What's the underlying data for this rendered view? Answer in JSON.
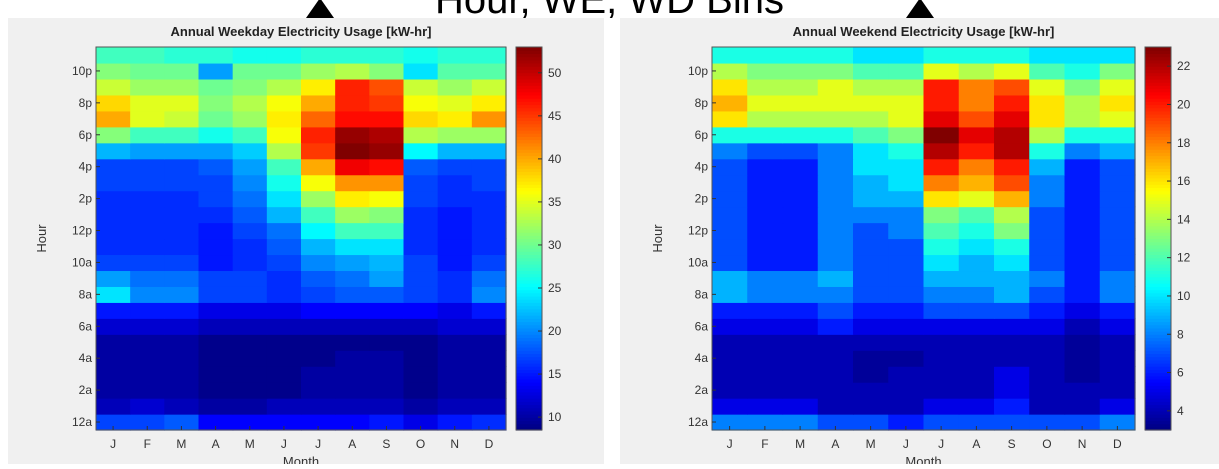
{
  "banner": {
    "text": "Hour, WE, WD Bins"
  },
  "chart_data": [
    {
      "type": "heatmap",
      "title": "Annual Weekday Electricity Usage [kW-hr]",
      "xlabel": "Month",
      "ylabel": "Hour",
      "colormap": "jet",
      "colorbar_range": [
        8.5,
        53
      ],
      "colorbar_ticks": [
        10,
        15,
        20,
        25,
        30,
        35,
        40,
        45,
        50
      ],
      "x": [
        "J",
        "F",
        "M",
        "A",
        "M",
        "J",
        "J",
        "A",
        "S",
        "O",
        "N",
        "D"
      ],
      "y_tick_labels": [
        "12a",
        "2a",
        "4a",
        "6a",
        "8a",
        "10a",
        "12p",
        "2p",
        "4p",
        "6p",
        "8p",
        "10p"
      ],
      "y_hours": [
        0,
        2,
        4,
        6,
        8,
        10,
        12,
        14,
        16,
        18,
        20,
        22
      ],
      "rows_by_hour": [
        [
          17,
          17,
          18,
          14,
          14,
          14,
          14,
          14,
          15,
          13,
          15,
          16
        ],
        [
          11,
          12,
          11,
          10,
          10,
          11,
          11,
          11,
          11,
          10,
          11,
          11
        ],
        [
          10,
          10,
          10,
          9,
          9,
          9,
          10,
          10,
          10,
          9,
          10,
          10
        ],
        [
          10,
          10,
          10,
          9,
          9,
          9,
          10,
          10,
          10,
          9,
          10,
          10
        ],
        [
          10,
          10,
          10,
          9,
          9,
          9,
          9,
          10,
          10,
          9,
          10,
          10
        ],
        [
          10,
          10,
          10,
          9,
          9,
          9,
          9,
          9,
          9,
          9,
          10,
          10
        ],
        [
          12,
          12,
          12,
          11,
          11,
          11,
          11,
          11,
          11,
          11,
          12,
          12
        ],
        [
          15,
          15,
          15,
          13,
          13,
          13,
          14,
          14,
          14,
          14,
          13,
          15
        ],
        [
          24,
          20,
          20,
          17,
          17,
          16,
          17,
          18,
          18,
          17,
          16,
          20
        ],
        [
          21,
          19,
          19,
          17,
          17,
          16,
          18,
          19,
          21,
          17,
          16,
          19
        ],
        [
          17,
          17,
          17,
          15,
          16,
          17,
          20,
          21,
          22,
          17,
          15,
          17
        ],
        [
          16,
          16,
          16,
          15,
          16,
          18,
          22,
          24,
          24,
          16,
          15,
          16
        ],
        [
          16,
          16,
          16,
          15,
          17,
          19,
          25,
          28,
          28,
          16,
          15,
          16
        ],
        [
          16,
          16,
          16,
          16,
          18,
          22,
          28,
          32,
          31,
          16,
          15,
          16
        ],
        [
          16,
          16,
          16,
          17,
          19,
          24,
          32,
          37,
          36,
          17,
          16,
          16
        ],
        [
          17,
          17,
          17,
          17,
          20,
          26,
          36,
          41,
          41,
          17,
          16,
          17
        ],
        [
          17,
          17,
          17,
          18,
          21,
          28,
          40,
          48,
          47,
          18,
          17,
          17
        ],
        [
          22,
          21,
          21,
          21,
          23,
          33,
          45,
          53,
          52,
          25,
          22,
          22
        ],
        [
          31,
          28,
          28,
          26,
          28,
          36,
          46,
          52,
          51,
          33,
          32,
          32
        ],
        [
          40,
          35,
          34,
          30,
          32,
          37,
          43,
          47,
          47,
          38,
          37,
          41
        ],
        [
          38,
          35,
          35,
          31,
          33,
          36,
          40,
          46,
          45,
          36,
          35,
          37
        ],
        [
          34,
          32,
          32,
          30,
          31,
          33,
          37,
          46,
          44,
          34,
          32,
          34
        ],
        [
          31,
          30,
          30,
          21,
          30,
          30,
          32,
          33,
          31,
          24,
          29,
          29
        ],
        [
          28,
          28,
          27,
          27,
          26,
          26,
          27,
          27,
          27,
          26,
          27,
          27
        ]
      ]
    },
    {
      "type": "heatmap",
      "title": "Annual Weekend Electricity Usage [kW-hr]",
      "xlabel": "Month",
      "ylabel": "Hour",
      "colormap": "jet",
      "colorbar_range": [
        3,
        23
      ],
      "colorbar_ticks": [
        4,
        6,
        8,
        10,
        12,
        14,
        16,
        18,
        20,
        22
      ],
      "x": [
        "J",
        "F",
        "M",
        "A",
        "M",
        "J",
        "J",
        "A",
        "S",
        "O",
        "N",
        "D"
      ],
      "y_tick_labels": [
        "12a",
        "2a",
        "4a",
        "6a",
        "8a",
        "10a",
        "12p",
        "2p",
        "4p",
        "6p",
        "8p",
        "10p"
      ],
      "y_hours": [
        0,
        2,
        4,
        6,
        8,
        10,
        12,
        14,
        16,
        18,
        20,
        22
      ],
      "rows_by_hour": [
        [
          8,
          8,
          8,
          7,
          7,
          6,
          7,
          7,
          7,
          7,
          7,
          8
        ],
        [
          5,
          5,
          5,
          4,
          4,
          4,
          5,
          5,
          6,
          4,
          4,
          5
        ],
        [
          4,
          4,
          4,
          4,
          4,
          4,
          4,
          4,
          5,
          4,
          4,
          4
        ],
        [
          4,
          4,
          4,
          4,
          3.5,
          4,
          4,
          4,
          5,
          4,
          3.5,
          4
        ],
        [
          4,
          4,
          4,
          4,
          3.5,
          3.5,
          4,
          4,
          4,
          4,
          3.5,
          4
        ],
        [
          4,
          4,
          4,
          4,
          4,
          4,
          4,
          4,
          4,
          4,
          3.5,
          4
        ],
        [
          5,
          5,
          5,
          6,
          5,
          5,
          5,
          5,
          5,
          5,
          4,
          5
        ],
        [
          6,
          6,
          6,
          7,
          6,
          6,
          7,
          7,
          7,
          6,
          5,
          6
        ],
        [
          9,
          8,
          8,
          8,
          7,
          7,
          8,
          8,
          9,
          7,
          6,
          8
        ],
        [
          9,
          8,
          8,
          9,
          7,
          7,
          9,
          9,
          9,
          8,
          6,
          8
        ],
        [
          7,
          6,
          6,
          8,
          7,
          7,
          10,
          9,
          10,
          7,
          6,
          7
        ],
        [
          7,
          6,
          6,
          8,
          7,
          7,
          11,
          10,
          11,
          7,
          6,
          7
        ],
        [
          7,
          6,
          6,
          8,
          7,
          8,
          12,
          11,
          13,
          7,
          6,
          7
        ],
        [
          7,
          6,
          6,
          8,
          8,
          8,
          13,
          12,
          14,
          7,
          6,
          7
        ],
        [
          7,
          6,
          6,
          8,
          9,
          9,
          16,
          15,
          17,
          8,
          6,
          7
        ],
        [
          7,
          6,
          6,
          8,
          9,
          10,
          18,
          17,
          19,
          8,
          6,
          7
        ],
        [
          7,
          6,
          6,
          8,
          10,
          10,
          20,
          18,
          20,
          9,
          6,
          7
        ],
        [
          8,
          7,
          7,
          8,
          10,
          11,
          22,
          20,
          22,
          11,
          8,
          9
        ],
        [
          11,
          11,
          11,
          11,
          12,
          13,
          23,
          21,
          22,
          14,
          11,
          11
        ],
        [
          16,
          14,
          14,
          14,
          14,
          15,
          21,
          19,
          21,
          16,
          14,
          15
        ],
        [
          17,
          15,
          15,
          15,
          15,
          15,
          20,
          18,
          20,
          16,
          14,
          16
        ],
        [
          16,
          14,
          14,
          15,
          14,
          14,
          20,
          18,
          19,
          15,
          13,
          15
        ],
        [
          14,
          13,
          13,
          13,
          12,
          12,
          15,
          14,
          15,
          12,
          11,
          13
        ],
        [
          11,
          11,
          11,
          11,
          10,
          10,
          11,
          11,
          11,
          10,
          10,
          10
        ]
      ]
    }
  ]
}
